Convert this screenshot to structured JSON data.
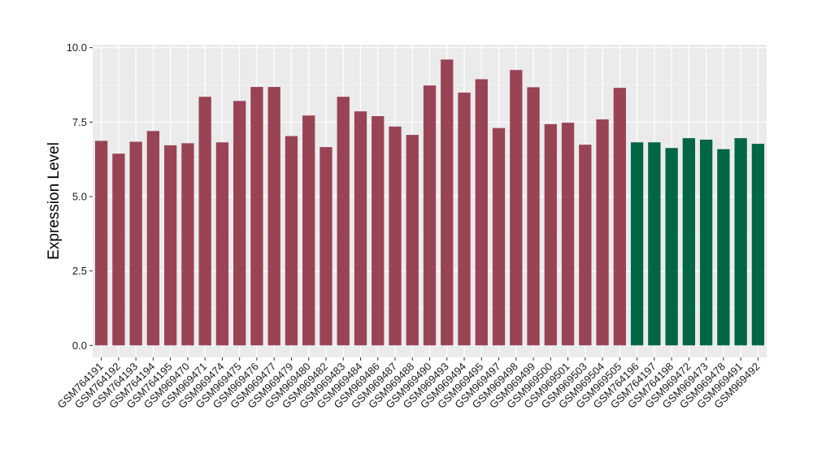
{
  "chart_data": {
    "type": "bar",
    "title": "",
    "xlabel": "",
    "ylabel": "Expression Level",
    "ylim": [
      -0.4,
      10.1
    ],
    "yticks": [
      0.0,
      2.5,
      5.0,
      7.5,
      10.0
    ],
    "ytick_labels": [
      "0.0",
      "2.5",
      "5.0",
      "7.5",
      "10.0"
    ],
    "grid": true,
    "legend": "none",
    "background": "#ebebeb",
    "categories": [
      "GSM764191",
      "GSM764192",
      "GSM764193",
      "GSM764194",
      "GSM764195",
      "GSM969470",
      "GSM969471",
      "GSM969474",
      "GSM969475",
      "GSM969476",
      "GSM969477",
      "GSM969479",
      "GSM969480",
      "GSM969482",
      "GSM969483",
      "GSM969484",
      "GSM969486",
      "GSM969487",
      "GSM969488",
      "GSM969490",
      "GSM969493",
      "GSM969494",
      "GSM969495",
      "GSM969497",
      "GSM969498",
      "GSM969499",
      "GSM969500",
      "GSM969501",
      "GSM969503",
      "GSM969504",
      "GSM969505",
      "GSM764196",
      "GSM764197",
      "GSM764198",
      "GSM969472",
      "GSM969473",
      "GSM969478",
      "GSM969491",
      "GSM969492"
    ],
    "values": [
      6.87,
      6.44,
      6.84,
      7.2,
      6.72,
      6.79,
      8.35,
      6.82,
      8.21,
      8.68,
      8.68,
      7.03,
      7.72,
      6.66,
      8.35,
      7.86,
      7.7,
      7.35,
      7.07,
      8.73,
      9.6,
      8.49,
      8.94,
      7.3,
      9.25,
      8.67,
      7.43,
      7.48,
      6.74,
      7.59,
      8.65,
      6.82,
      6.82,
      6.63,
      6.96,
      6.91,
      6.59,
      6.96,
      6.77
    ],
    "bar_colors": [
      "#994455",
      "#994455",
      "#994455",
      "#994455",
      "#994455",
      "#994455",
      "#994455",
      "#994455",
      "#994455",
      "#994455",
      "#994455",
      "#994455",
      "#994455",
      "#994455",
      "#994455",
      "#994455",
      "#994455",
      "#994455",
      "#994455",
      "#994455",
      "#994455",
      "#994455",
      "#994455",
      "#994455",
      "#994455",
      "#994455",
      "#994455",
      "#994455",
      "#994455",
      "#994455",
      "#994455",
      "#006644",
      "#006644",
      "#006644",
      "#006644",
      "#006644",
      "#006644",
      "#006644",
      "#006644"
    ]
  }
}
